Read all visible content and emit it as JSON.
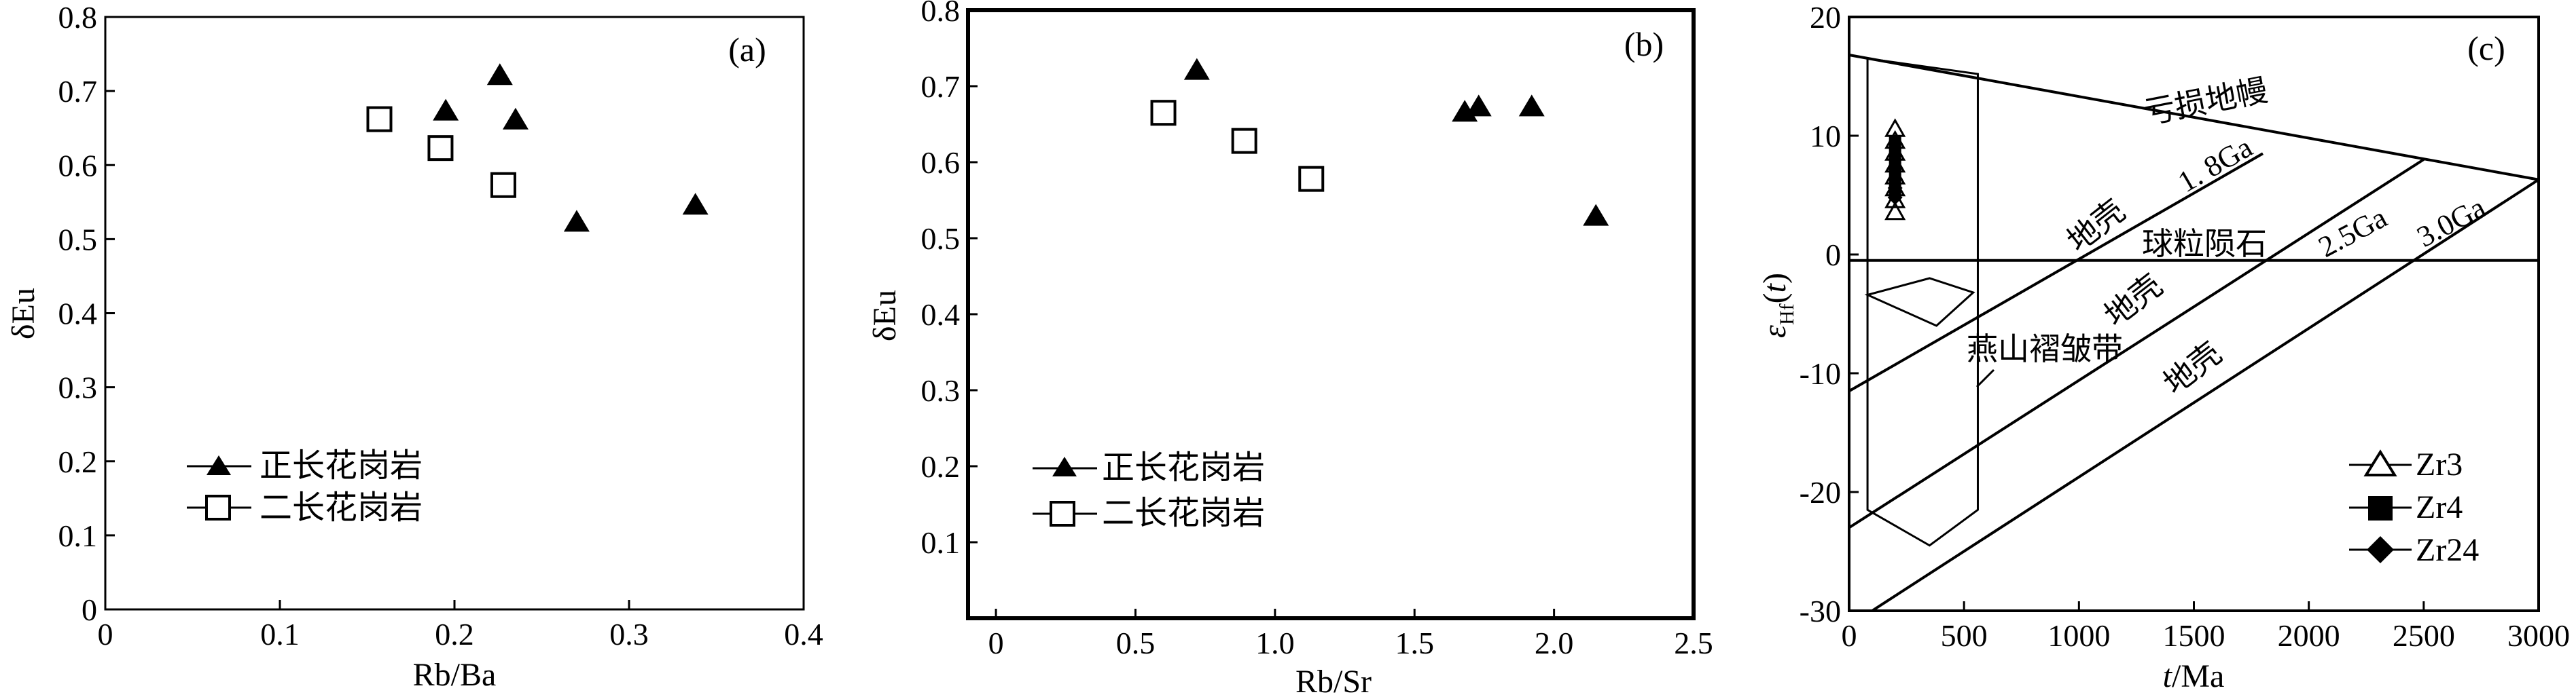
{
  "chart_data": [
    {
      "type": "scatter",
      "panel_label": "(a)",
      "xlabel": "Rb/Ba",
      "ylabel": "δEu",
      "xlim": [
        0,
        0.4
      ],
      "ylim": [
        0,
        0.8
      ],
      "xticks": [
        "0",
        "0.1",
        "0.2",
        "0.3",
        "0.4"
      ],
      "yticks": [
        "0",
        "0.1",
        "0.2",
        "0.3",
        "0.4",
        "0.5",
        "0.6",
        "0.7",
        "0.8"
      ],
      "legend_position": "bottom-left",
      "series": [
        {
          "name": "正长花岗岩",
          "marker": "triangle-filled",
          "points": [
            [
              0.195,
              0.672
            ],
            [
              0.226,
              0.72
            ],
            [
              0.235,
              0.66
            ],
            [
              0.27,
              0.522
            ],
            [
              0.338,
              0.545
            ]
          ]
        },
        {
          "name": "二长花岗岩",
          "marker": "square-open",
          "points": [
            [
              0.157,
              0.662
            ],
            [
              0.192,
              0.623
            ],
            [
              0.228,
              0.573
            ]
          ]
        }
      ]
    },
    {
      "type": "scatter",
      "panel_label": "(b)",
      "xlabel": "Rb/Sr",
      "ylabel": "δEu",
      "xlim": [
        -0.1,
        2.5
      ],
      "ylim": [
        0,
        0.8
      ],
      "xticks": [
        "0",
        "0.5",
        "1.0",
        "1.5",
        "2.0",
        "2.5"
      ],
      "yticks": [
        "0.1",
        "0.2",
        "0.3",
        "0.4",
        "0.5",
        "0.6",
        "0.7",
        "0.8"
      ],
      "legend_position": "bottom-left",
      "series": [
        {
          "name": "正长花岗岩",
          "marker": "triangle-filled",
          "points": [
            [
              0.72,
              0.72
            ],
            [
              1.68,
              0.665
            ],
            [
              1.73,
              0.672
            ],
            [
              1.92,
              0.672
            ],
            [
              2.15,
              0.528
            ]
          ]
        },
        {
          "name": "二长花岗岩",
          "marker": "square-open",
          "points": [
            [
              0.6,
              0.665
            ],
            [
              0.89,
              0.628
            ],
            [
              1.13,
              0.578
            ]
          ]
        }
      ]
    },
    {
      "type": "scatter",
      "panel_label": "(c)",
      "xlabel": "t/Ma",
      "ylabel": "εHf(t)",
      "xlim": [
        0,
        3000
      ],
      "ylim": [
        -30,
        20
      ],
      "xticks": [
        "0",
        "500",
        "1000",
        "1500",
        "2000",
        "2500",
        "3000"
      ],
      "yticks": [
        "-30",
        "-20",
        "-10",
        "0",
        "10",
        "20"
      ],
      "legend_position": "bottom-right",
      "reference_lines": [
        {
          "name": "亏损地幔",
          "points": [
            [
              0,
              16.8
            ],
            [
              3000,
              6.3
            ]
          ]
        },
        {
          "name": "球粒陨石",
          "points": [
            [
              0,
              -0.5
            ],
            [
              3000,
              -0.5
            ]
          ]
        },
        {
          "name": "1.8Ga",
          "points": [
            [
              0,
              -11.5
            ],
            [
              1800,
              8.5
            ]
          ]
        },
        {
          "name": "2.5Ga",
          "points": [
            [
              0,
              -23
            ],
            [
              2500,
              8
            ]
          ]
        },
        {
          "name": "3.0Ga",
          "points": [
            [
              100,
              -30
            ],
            [
              3000,
              6.3
            ]
          ]
        }
      ],
      "region_labels": [
        "地壳",
        "地壳",
        "地壳",
        "燕山褶皱带"
      ],
      "series": [
        {
          "name": "Zr3",
          "marker": "triangle-open",
          "points": [
            [
              200,
              10.5
            ],
            [
              200,
              9.5
            ],
            [
              200,
              8.5
            ],
            [
              200,
              7.5
            ],
            [
              200,
              6.5
            ],
            [
              200,
              5.5
            ],
            [
              200,
              4.5
            ],
            [
              200,
              3.5
            ]
          ]
        },
        {
          "name": "Zr4",
          "marker": "square-filled",
          "points": [
            [
              200,
              9.5
            ],
            [
              200,
              8.5
            ],
            [
              200,
              7.5
            ],
            [
              200,
              6.8
            ],
            [
              200,
              6.0
            ],
            [
              200,
              5.2
            ]
          ]
        },
        {
          "name": "Zr24",
          "marker": "diamond-filled",
          "points": [
            [
              200,
              9.0
            ],
            [
              200,
              8.0
            ],
            [
              200,
              7.2
            ],
            [
              200,
              6.4
            ],
            [
              200,
              5.6
            ],
            [
              200,
              4.8
            ]
          ]
        }
      ]
    }
  ]
}
